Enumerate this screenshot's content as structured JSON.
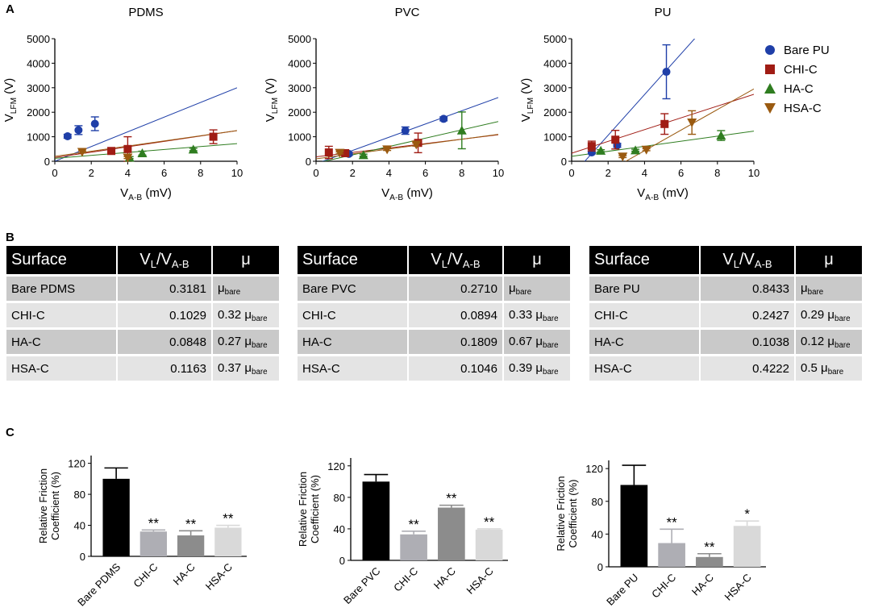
{
  "panel_labels": {
    "a": "A",
    "b": "B",
    "c": "C"
  },
  "chart_data": [
    {
      "type": "scatter",
      "title": "PDMS",
      "xlabel": "V_{A-B} (mV)",
      "ylabel": "V_{LFM} (V)",
      "xlim": [
        0,
        10
      ],
      "ylim": [
        0,
        5000
      ],
      "xticks": [
        "0",
        "2",
        "4",
        "6",
        "8",
        "10"
      ],
      "yticks": [
        "0",
        "1000",
        "2000",
        "3000",
        "4000",
        "5000"
      ],
      "series": [
        {
          "name": "Bare PU",
          "color": "#1f3fa8",
          "marker": "circle",
          "x": [
            0.7,
            1.3,
            2.2
          ],
          "y": [
            1020,
            1270,
            1530
          ],
          "err": [
            80,
            180,
            280
          ],
          "slope": 300,
          "intercept": 0
        },
        {
          "name": "CHI-C",
          "color": "#a01c14",
          "marker": "square",
          "x": [
            3.1,
            4.0,
            8.7
          ],
          "y": [
            420,
            500,
            1000
          ],
          "err": [
            50,
            500,
            280
          ],
          "slope": 110,
          "intercept": 150
        },
        {
          "name": "HA-C",
          "color": "#2f7d20",
          "marker": "triangle-up",
          "x": [
            4.1,
            4.8,
            7.6
          ],
          "y": [
            150,
            330,
            480
          ],
          "err": [
            40,
            80,
            50
          ],
          "slope": 60,
          "intercept": 120
        },
        {
          "name": "HSA-C",
          "color": "#9a5a10",
          "marker": "triangle-down",
          "x": [
            1.5,
            4.0
          ],
          "y": [
            380,
            150
          ],
          "err": [
            40,
            40
          ],
          "slope": 105,
          "intercept": 200
        }
      ]
    },
    {
      "type": "scatter",
      "title": "PVC",
      "xlabel": "V_{A-B} (mV)",
      "ylabel": "V_{LFM} (V)",
      "xlim": [
        0,
        10
      ],
      "ylim": [
        0,
        5000
      ],
      "xticks": [
        "0",
        "2",
        "4",
        "6",
        "8",
        "10"
      ],
      "yticks": [
        "0",
        "1000",
        "2000",
        "3000",
        "4000",
        "5000"
      ],
      "series": [
        {
          "name": "Bare PU",
          "color": "#1f3fa8",
          "marker": "circle",
          "x": [
            1.8,
            4.9,
            7.0
          ],
          "y": [
            300,
            1250,
            1730
          ],
          "err": [
            60,
            150,
            80
          ],
          "slope": 270,
          "intercept": -100
        },
        {
          "name": "CHI-C",
          "color": "#a01c14",
          "marker": "square",
          "x": [
            0.7,
            1.6,
            5.6
          ],
          "y": [
            360,
            330,
            750
          ],
          "err": [
            250,
            100,
            400
          ],
          "slope": 90,
          "intercept": 180
        },
        {
          "name": "HA-C",
          "color": "#2f7d20",
          "marker": "triangle-up",
          "x": [
            2.6,
            8.0
          ],
          "y": [
            250,
            1260
          ],
          "err": [
            40,
            750
          ],
          "slope": 170,
          "intercept": -80
        },
        {
          "name": "HSA-C",
          "color": "#9a5a10",
          "marker": "triangle-down",
          "x": [
            1.3,
            3.9,
            5.5
          ],
          "y": [
            340,
            480,
            680
          ],
          "err": [
            40,
            40,
            60
          ],
          "slope": 100,
          "intercept": 100
        }
      ]
    },
    {
      "type": "scatter",
      "title": "PU",
      "xlabel": "V_{A-B} (mV)",
      "ylabel": "V_{LFM} (V)",
      "xlim": [
        0,
        10
      ],
      "ylim": [
        0,
        5000
      ],
      "xticks": [
        "0",
        "2",
        "4",
        "6",
        "8",
        "10"
      ],
      "yticks": [
        "0",
        "1000",
        "2000",
        "3000",
        "4000",
        "5000"
      ],
      "series": [
        {
          "name": "Bare PU",
          "color": "#1f3fa8",
          "marker": "circle",
          "x": [
            1.1,
            2.5,
            5.2
          ],
          "y": [
            360,
            650,
            3650
          ],
          "err": [
            60,
            80,
            1100
          ],
          "slope": 830,
          "intercept": -600
        },
        {
          "name": "CHI-C",
          "color": "#a01c14",
          "marker": "square",
          "x": [
            1.1,
            2.4,
            5.1
          ],
          "y": [
            620,
            880,
            1520
          ],
          "err": [
            200,
            380,
            420
          ],
          "slope": 240,
          "intercept": 330
        },
        {
          "name": "HA-C",
          "color": "#2f7d20",
          "marker": "triangle-up",
          "x": [
            1.6,
            3.5,
            8.2
          ],
          "y": [
            430,
            450,
            1050
          ],
          "err": [
            40,
            40,
            200
          ],
          "slope": 103,
          "intercept": 200
        },
        {
          "name": "HSA-C",
          "color": "#9a5a10",
          "marker": "triangle-down",
          "x": [
            2.8,
            4.1,
            6.6
          ],
          "y": [
            190,
            470,
            1580
          ],
          "err": [
            40,
            40,
            480
          ],
          "slope": 420,
          "intercept": -1250
        }
      ]
    },
    {
      "type": "bar",
      "title": "",
      "ylabel": "Relative Friction Coefficient (%)",
      "ylim": [
        0,
        130
      ],
      "yticks": [
        "0",
        "40",
        "80",
        "120"
      ],
      "categories": [
        "Bare PDMS",
        "CHI-C",
        "HA-C",
        "HSA-C"
      ],
      "values": [
        100,
        32,
        27,
        37
      ],
      "errors": [
        14,
        2,
        6,
        3
      ],
      "significance": [
        "",
        "**",
        "**",
        "**"
      ],
      "colors": [
        "#000000",
        "#aeaeb4",
        "#8c8c8c",
        "#d9d9d9"
      ]
    },
    {
      "type": "bar",
      "title": "",
      "ylabel": "Relative Friction Coefficient (%)",
      "ylim": [
        0,
        130
      ],
      "yticks": [
        "0",
        "40",
        "80",
        "120"
      ],
      "categories": [
        "Bare PVC",
        "CHI-C",
        "HA-C",
        "HSA-C"
      ],
      "values": [
        100,
        33,
        67,
        39
      ],
      "errors": [
        9,
        4,
        3,
        1
      ],
      "significance": [
        "",
        "**",
        "**",
        "**"
      ],
      "colors": [
        "#000000",
        "#aeaeb4",
        "#8c8c8c",
        "#d9d9d9"
      ]
    },
    {
      "type": "bar",
      "title": "",
      "ylabel": "Relative Friction Coefficient (%)",
      "ylim": [
        0,
        130
      ],
      "yticks": [
        "0",
        "40",
        "80",
        "120"
      ],
      "categories": [
        "Bare PU",
        "CHI-C",
        "HA-C",
        "HSA-C"
      ],
      "values": [
        100,
        29,
        12,
        50
      ],
      "errors": [
        24,
        17,
        4,
        6
      ],
      "significance": [
        "",
        "**",
        "**",
        "*"
      ],
      "colors": [
        "#000000",
        "#aeaeb4",
        "#8c8c8c",
        "#d9d9d9"
      ]
    }
  ],
  "legend": [
    {
      "name": "Bare PU",
      "color": "#1f3fa8",
      "marker": "circle"
    },
    {
      "name": "CHI-C",
      "color": "#a01c14",
      "marker": "square"
    },
    {
      "name": "HA-C",
      "color": "#2f7d20",
      "marker": "triangle-up"
    },
    {
      "name": "HSA-C",
      "color": "#9a5a10",
      "marker": "triangle-down"
    }
  ],
  "tables": [
    {
      "header": {
        "surface": "Surface",
        "ratio_main": "V",
        "ratio_sub1": "L",
        "ratio_mid": "/V",
        "ratio_sub2": "A-B",
        "mu": "μ"
      },
      "rows": [
        {
          "surface": "Bare PDMS",
          "ratio": "0.3181",
          "mu_coef": "",
          "mu_sym": "μ",
          "mu_sub": "bare"
        },
        {
          "surface": "CHI-C",
          "ratio": "0.1029",
          "mu_coef": "0.32",
          "mu_sym": "μ",
          "mu_sub": "bare"
        },
        {
          "surface": "HA-C",
          "ratio": "0.0848",
          "mu_coef": "0.27",
          "mu_sym": "μ",
          "mu_sub": "bare"
        },
        {
          "surface": "HSA-C",
          "ratio": "0.1163",
          "mu_coef": "0.37",
          "mu_sym": "μ",
          "mu_sub": "bare"
        }
      ]
    },
    {
      "header": {
        "surface": "Surface",
        "ratio_main": "V",
        "ratio_sub1": "L",
        "ratio_mid": "/V",
        "ratio_sub2": "A-B",
        "mu": "μ"
      },
      "rows": [
        {
          "surface": "Bare PVC",
          "ratio": "0.2710",
          "mu_coef": "",
          "mu_sym": "μ",
          "mu_sub": "bare"
        },
        {
          "surface": "CHI-C",
          "ratio": "0.0894",
          "mu_coef": "0.33",
          "mu_sym": "μ",
          "mu_sub": "bare"
        },
        {
          "surface": "HA-C",
          "ratio": "0.1809",
          "mu_coef": "0.67",
          "mu_sym": "μ",
          "mu_sub": "bare"
        },
        {
          "surface": "HSA-C",
          "ratio": "0.1046",
          "mu_coef": "0.39",
          "mu_sym": "μ",
          "mu_sub": "bare"
        }
      ]
    },
    {
      "header": {
        "surface": "Surface",
        "ratio_main": "V",
        "ratio_sub1": "L",
        "ratio_mid": "/V",
        "ratio_sub2": "A-B",
        "mu": "μ"
      },
      "rows": [
        {
          "surface": "Bare PU",
          "ratio": "0.8433",
          "mu_coef": "",
          "mu_sym": "μ",
          "mu_sub": "bare"
        },
        {
          "surface": "CHI-C",
          "ratio": "0.2427",
          "mu_coef": "0.29",
          "mu_sym": "μ",
          "mu_sub": "bare"
        },
        {
          "surface": "HA-C",
          "ratio": "0.1038",
          "mu_coef": "0.12",
          "mu_sym": "μ",
          "mu_sub": "bare"
        },
        {
          "surface": "HSA-C",
          "ratio": "0.4222",
          "mu_coef": "0.5",
          "mu_sym": "μ",
          "mu_sub": "bare"
        }
      ]
    }
  ]
}
